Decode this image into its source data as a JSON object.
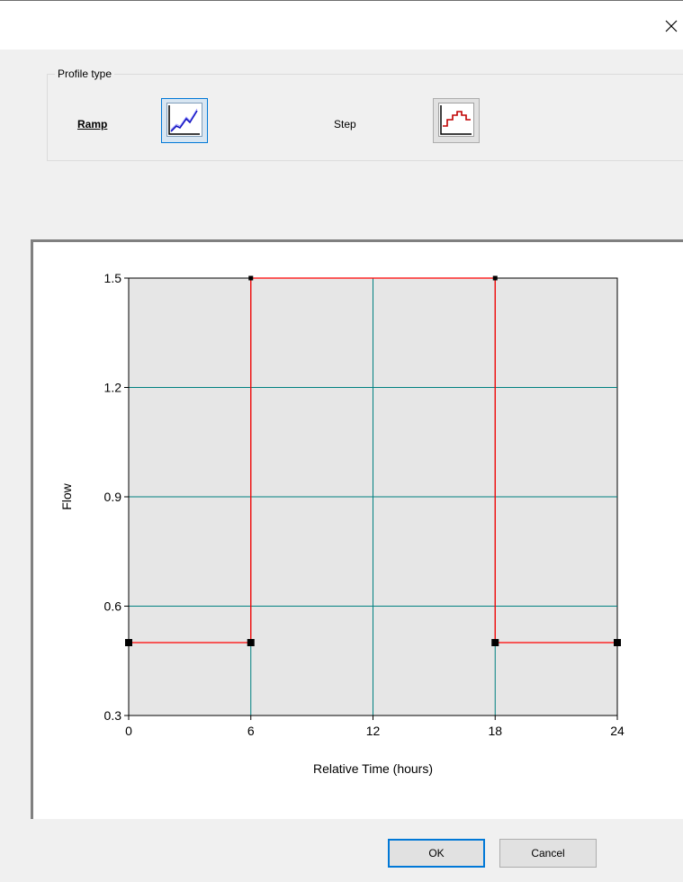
{
  "window": {
    "close_glyph": "×"
  },
  "profile_group": {
    "legend": "Profile type",
    "ramp_label": "Ramp",
    "step_label": "Step"
  },
  "chart_data": {
    "type": "line",
    "xlabel": "Relative Time (hours)",
    "ylabel": "Flow",
    "xlim": [
      0,
      24
    ],
    "ylim": [
      0.3,
      1.5
    ],
    "x_ticks": [
      0,
      6,
      12,
      18,
      24
    ],
    "y_ticks": [
      0.3,
      0.6,
      0.9,
      1.2,
      1.5
    ],
    "x_tick_labels": [
      "0",
      "6",
      "12",
      "18",
      "24"
    ],
    "y_tick_labels": [
      "0.3",
      "0.6",
      "0.9",
      "1.2",
      "1.5"
    ],
    "grid": true,
    "series": [
      {
        "x": [
          0,
          6,
          6,
          18,
          18,
          24
        ],
        "y": [
          0.5,
          0.5,
          1.5,
          1.5,
          0.5,
          0.5
        ]
      }
    ],
    "marker_points": [
      {
        "x": 0,
        "y": 0.5
      },
      {
        "x": 6,
        "y": 0.5
      },
      {
        "x": 6,
        "y": 1.5
      },
      {
        "x": 18,
        "y": 1.5
      },
      {
        "x": 18,
        "y": 0.5
      },
      {
        "x": 24,
        "y": 0.5
      }
    ],
    "colors": {
      "line": "#ff0000",
      "grid": "#008080",
      "plot_bg": "#e6e6e6",
      "marker": "#000000"
    }
  },
  "buttons": {
    "ok": "OK",
    "cancel": "Cancel"
  }
}
